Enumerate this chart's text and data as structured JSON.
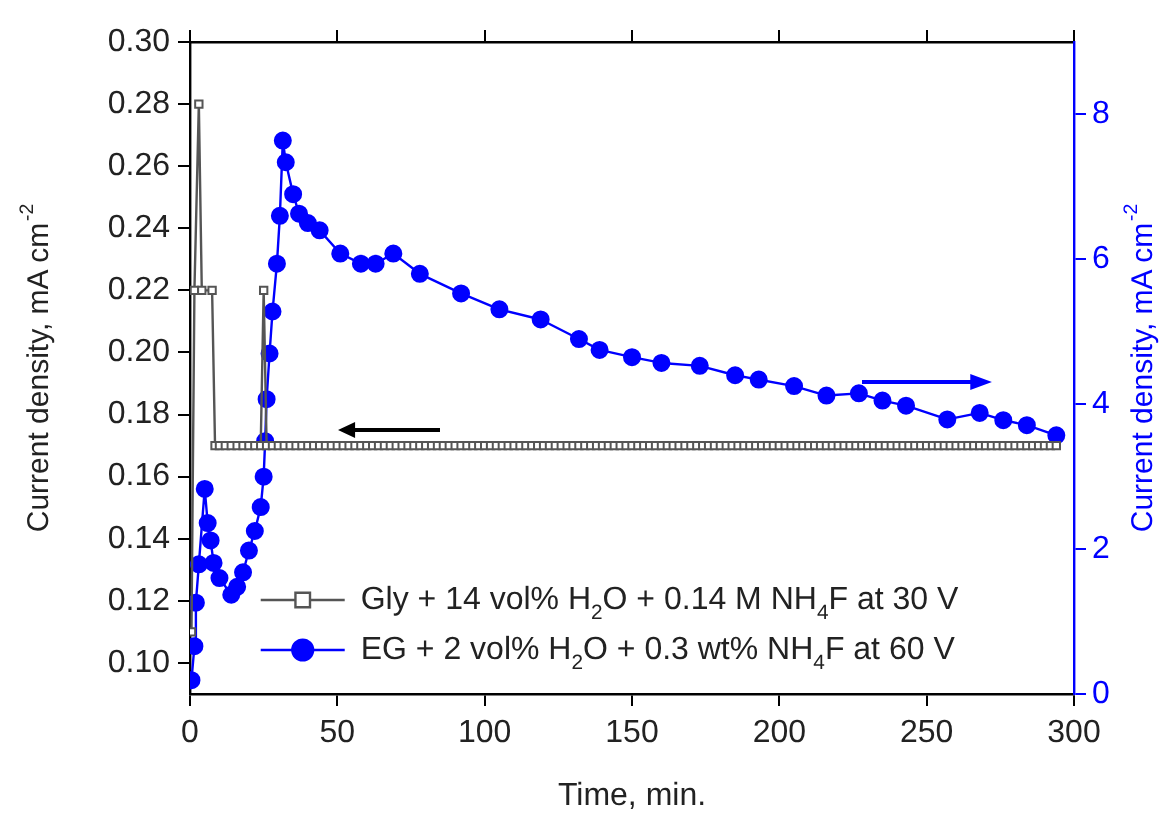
{
  "chart_data": {
    "type": "line",
    "xlabel": "Time, min.",
    "ylabel": "Current density, mA cm$^{-2}$",
    "y2label": "Current density, mA cm$^{-2}$",
    "xlim": [
      0,
      300
    ],
    "xticks": [
      0,
      50,
      100,
      150,
      200,
      250,
      300
    ],
    "ylim": [
      0.09,
      0.3
    ],
    "yticks": [
      {
        "value": 0.1,
        "label": "0.10"
      },
      0.12,
      0.14,
      0.16,
      0.18,
      {
        "value": 0.2,
        "label": "0.20"
      },
      0.22,
      0.24,
      0.26,
      0.28,
      {
        "value": 0.3,
        "label": "0.30"
      }
    ],
    "y2lim": [
      0,
      9
    ],
    "y2ticks": [
      0,
      2,
      4,
      6,
      8
    ],
    "grid": false,
    "legend": "bottom",
    "line_style": "solid",
    "series": [
      {
        "name": "Gly + 14 vol% H$_{2}$O + 0.14 M NH$_{4}$F at 30 V",
        "color": "#555555",
        "marker": "square",
        "axis": "y",
        "x": [
          0.5,
          1.5,
          3,
          4,
          7.5,
          8.5,
          10,
          12,
          14,
          16,
          18,
          20,
          22,
          24,
          25,
          26,
          28,
          30,
          32,
          34,
          36,
          38,
          40,
          42,
          44,
          46,
          48,
          50,
          52,
          54,
          56,
          58,
          60,
          62,
          64,
          66,
          68,
          70,
          72,
          74,
          76,
          78,
          80,
          82,
          84,
          86,
          88,
          90,
          92,
          94,
          96,
          98,
          100,
          102,
          104,
          106,
          108,
          110,
          112,
          114,
          116,
          118,
          120,
          122,
          124,
          126,
          128,
          130,
          132,
          134,
          136,
          138,
          140,
          142,
          144,
          146,
          148,
          150,
          152,
          154,
          156,
          158,
          160,
          162,
          164,
          166,
          168,
          170,
          172,
          174,
          176,
          178,
          180,
          182,
          184,
          186,
          188,
          190,
          192,
          194,
          196,
          198,
          200,
          202,
          204,
          206,
          208,
          210,
          212,
          214,
          216,
          218,
          220,
          222,
          224,
          226,
          228,
          230,
          232,
          234,
          236,
          238,
          240,
          242,
          244,
          246,
          248,
          250,
          252,
          254,
          256,
          258,
          260,
          262,
          264,
          266,
          268,
          270,
          272,
          274,
          276,
          278,
          280,
          282,
          284,
          286,
          288,
          290,
          292,
          294
        ],
        "values": [
          0.11,
          0.22,
          0.28,
          0.22,
          0.22,
          0.17,
          0.17,
          0.17,
          0.17,
          0.17,
          0.17,
          0.17,
          0.17,
          0.17,
          0.22,
          0.17,
          0.17,
          0.17,
          0.17,
          0.17,
          0.17,
          0.17,
          0.17,
          0.17,
          0.17,
          0.17,
          0.17,
          0.17,
          0.17,
          0.17,
          0.17,
          0.17,
          0.17,
          0.17,
          0.17,
          0.17,
          0.17,
          0.17,
          0.17,
          0.17,
          0.17,
          0.17,
          0.17,
          0.17,
          0.17,
          0.17,
          0.17,
          0.17,
          0.17,
          0.17,
          0.17,
          0.17,
          0.17,
          0.17,
          0.17,
          0.17,
          0.17,
          0.17,
          0.17,
          0.17,
          0.17,
          0.17,
          0.17,
          0.17,
          0.17,
          0.17,
          0.17,
          0.17,
          0.17,
          0.17,
          0.17,
          0.17,
          0.17,
          0.17,
          0.17,
          0.17,
          0.17,
          0.17,
          0.17,
          0.17,
          0.17,
          0.17,
          0.17,
          0.17,
          0.17,
          0.17,
          0.17,
          0.17,
          0.17,
          0.17,
          0.17,
          0.17,
          0.17,
          0.17,
          0.17,
          0.17,
          0.17,
          0.17,
          0.17,
          0.17,
          0.17,
          0.17,
          0.17,
          0.17,
          0.17,
          0.17,
          0.17,
          0.17,
          0.17,
          0.17,
          0.17,
          0.17,
          0.17,
          0.17,
          0.17,
          0.17,
          0.17,
          0.17,
          0.17,
          0.17,
          0.17,
          0.17,
          0.17,
          0.17,
          0.17,
          0.17,
          0.17,
          0.17,
          0.17,
          0.17,
          0.17,
          0.17,
          0.17,
          0.17,
          0.17,
          0.17,
          0.17,
          0.17,
          0.17,
          0.17,
          0.17,
          0.17,
          0.17,
          0.17,
          0.17,
          0.17,
          0.17,
          0.17,
          0.17,
          0.17
        ]
      },
      {
        "name": "EG + 2 vol% H$_{2}$O + 0.3 wt% NH$_{4}$F at 60 V",
        "color": "#0000ff",
        "marker": "circle",
        "axis": "y2",
        "x": [
          0.5,
          1.5,
          2,
          3,
          5,
          6,
          7,
          8,
          10,
          14,
          16,
          18,
          20,
          22,
          24,
          25,
          25.5,
          26,
          27,
          28,
          29.5,
          30.5,
          31.5,
          32.5,
          35,
          37,
          40,
          44,
          51,
          58,
          63,
          69,
          78,
          92,
          105,
          119,
          132,
          139,
          150,
          160,
          173,
          185,
          193,
          205,
          216,
          227,
          235,
          243,
          257,
          268,
          276,
          284,
          294
        ],
        "values": [
          0.19,
          0.66,
          1.26,
          1.79,
          2.83,
          2.36,
          2.12,
          1.81,
          1.6,
          1.37,
          1.48,
          1.68,
          1.98,
          2.25,
          2.58,
          3.0,
          3.49,
          4.07,
          4.7,
          5.28,
          5.94,
          6.6,
          7.64,
          7.34,
          6.9,
          6.63,
          6.5,
          6.4,
          6.08,
          5.94,
          5.94,
          6.08,
          5.8,
          5.53,
          5.31,
          5.17,
          4.9,
          4.75,
          4.65,
          4.57,
          4.53,
          4.4,
          4.34,
          4.25,
          4.12,
          4.15,
          4.05,
          3.98,
          3.79,
          3.88,
          3.78,
          3.71,
          3.57
        ]
      }
    ]
  }
}
